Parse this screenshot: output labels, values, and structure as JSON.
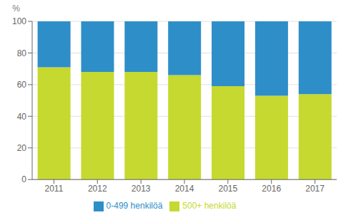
{
  "chart_data": {
    "type": "bar",
    "stacked": true,
    "y_label": "%",
    "categories": [
      "2011",
      "2012",
      "2013",
      "2014",
      "2015",
      "2016",
      "2017"
    ],
    "series": [
      {
        "name": "500+ henkilöä",
        "color": "#c5d930",
        "values": [
          71,
          68,
          68,
          66,
          59,
          53,
          54
        ]
      },
      {
        "name": "0-499 henkilöä",
        "color": "#2e8ec8",
        "values": [
          29,
          32,
          32,
          34,
          41,
          47,
          46
        ]
      }
    ],
    "ylim": [
      0,
      100
    ],
    "yticks": [
      0,
      20,
      40,
      60,
      80,
      100
    ],
    "grid": true,
    "legend": "bottom"
  }
}
